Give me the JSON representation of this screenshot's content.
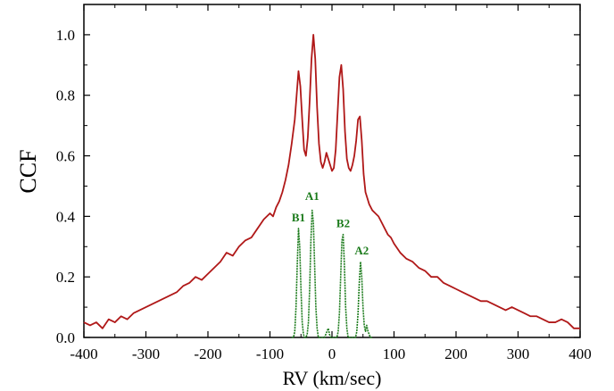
{
  "chart_data": {
    "type": "line",
    "title": "",
    "xlabel": "RV (km/sec)",
    "ylabel": "CCF",
    "xlim": [
      -400,
      400
    ],
    "ylim": [
      0,
      1.1
    ],
    "x_ticks": [
      "-400",
      "-300",
      "-200",
      "-100",
      "0",
      "100",
      "200",
      "300",
      "400"
    ],
    "y_ticks": [
      "0.0",
      "0.2",
      "0.4",
      "0.6",
      "0.8",
      "1.0"
    ],
    "grid": false,
    "colors": {
      "combined": "#b01818",
      "components": "#1a7a1a"
    },
    "series": [
      {
        "key": "combined",
        "x": [
          -400,
          -390,
          -380,
          -370,
          -360,
          -350,
          -340,
          -330,
          -320,
          -310,
          -300,
          -290,
          -280,
          -270,
          -260,
          -250,
          -240,
          -230,
          -220,
          -210,
          -200,
          -190,
          -180,
          -170,
          -160,
          -150,
          -140,
          -130,
          -120,
          -110,
          -100,
          -95,
          -90,
          -85,
          -80,
          -75,
          -70,
          -65,
          -60,
          -57,
          -54,
          -51,
          -48,
          -45,
          -42,
          -39,
          -36,
          -33,
          -30,
          -27,
          -24,
          -21,
          -18,
          -15,
          -12,
          -9,
          -6,
          -3,
          0,
          3,
          6,
          9,
          12,
          15,
          18,
          21,
          24,
          27,
          30,
          33,
          36,
          39,
          42,
          45,
          48,
          51,
          54,
          57,
          60,
          65,
          70,
          75,
          80,
          85,
          90,
          95,
          100,
          110,
          120,
          130,
          140,
          150,
          160,
          170,
          180,
          190,
          200,
          210,
          220,
          230,
          240,
          250,
          260,
          270,
          280,
          290,
          300,
          310,
          320,
          330,
          340,
          350,
          360,
          370,
          380,
          390,
          400
        ],
        "y": [
          0.05,
          0.04,
          0.05,
          0.03,
          0.06,
          0.05,
          0.07,
          0.06,
          0.08,
          0.09,
          0.1,
          0.11,
          0.12,
          0.13,
          0.14,
          0.15,
          0.17,
          0.18,
          0.2,
          0.19,
          0.21,
          0.23,
          0.25,
          0.28,
          0.27,
          0.3,
          0.32,
          0.33,
          0.36,
          0.39,
          0.41,
          0.4,
          0.43,
          0.45,
          0.48,
          0.52,
          0.57,
          0.64,
          0.72,
          0.8,
          0.88,
          0.83,
          0.72,
          0.62,
          0.6,
          0.66,
          0.78,
          0.92,
          1.0,
          0.92,
          0.76,
          0.64,
          0.58,
          0.56,
          0.58,
          0.61,
          0.59,
          0.57,
          0.55,
          0.56,
          0.62,
          0.74,
          0.86,
          0.9,
          0.82,
          0.68,
          0.59,
          0.56,
          0.55,
          0.57,
          0.6,
          0.65,
          0.72,
          0.73,
          0.65,
          0.54,
          0.48,
          0.46,
          0.44,
          0.42,
          0.41,
          0.4,
          0.38,
          0.36,
          0.34,
          0.33,
          0.31,
          0.28,
          0.26,
          0.25,
          0.23,
          0.22,
          0.2,
          0.2,
          0.18,
          0.17,
          0.16,
          0.15,
          0.14,
          0.13,
          0.12,
          0.12,
          0.11,
          0.1,
          0.09,
          0.1,
          0.09,
          0.08,
          0.07,
          0.07,
          0.06,
          0.05,
          0.05,
          0.06,
          0.05,
          0.03,
          0.03
        ]
      },
      {
        "key": "components",
        "x": [
          -65,
          -62,
          -60,
          -58,
          -56,
          -54,
          -52,
          -50,
          -48,
          -46,
          -44,
          -42,
          -40,
          -38,
          -36,
          -34,
          -32,
          -30,
          -28,
          -26,
          -24,
          -22,
          -20,
          -18,
          -16,
          -14,
          -12,
          -10,
          -8,
          -6,
          -4,
          -2,
          0,
          2,
          4,
          6,
          8,
          10,
          12,
          14,
          16,
          18,
          20,
          22,
          24,
          26,
          28,
          30,
          32,
          34,
          36,
          38,
          40,
          42,
          44,
          46,
          48,
          50,
          52,
          54,
          56,
          58,
          60,
          62,
          65
        ],
        "y": [
          0.0,
          0.0,
          0.02,
          0.1,
          0.24,
          0.36,
          0.3,
          0.16,
          0.05,
          0.01,
          0.0,
          0.0,
          0.01,
          0.05,
          0.16,
          0.32,
          0.42,
          0.38,
          0.24,
          0.1,
          0.03,
          0.0,
          0.0,
          0.0,
          0.0,
          0.0,
          0.0,
          0.01,
          0.02,
          0.03,
          0.01,
          0.0,
          0.0,
          0.0,
          0.0,
          0.0,
          0.0,
          0.02,
          0.08,
          0.2,
          0.32,
          0.34,
          0.24,
          0.1,
          0.03,
          0.0,
          0.0,
          0.0,
          0.0,
          0.0,
          0.0,
          0.0,
          0.02,
          0.08,
          0.18,
          0.25,
          0.2,
          0.1,
          0.04,
          0.02,
          0.04,
          0.02,
          0.01,
          0.0,
          0.0
        ]
      }
    ],
    "annotations": [
      {
        "text": "B1",
        "x": -54,
        "y": 0.36
      },
      {
        "text": "A1",
        "x": -32,
        "y": 0.43
      },
      {
        "text": "B2",
        "x": 18,
        "y": 0.34
      },
      {
        "text": "A2",
        "x": 48,
        "y": 0.25
      }
    ]
  }
}
